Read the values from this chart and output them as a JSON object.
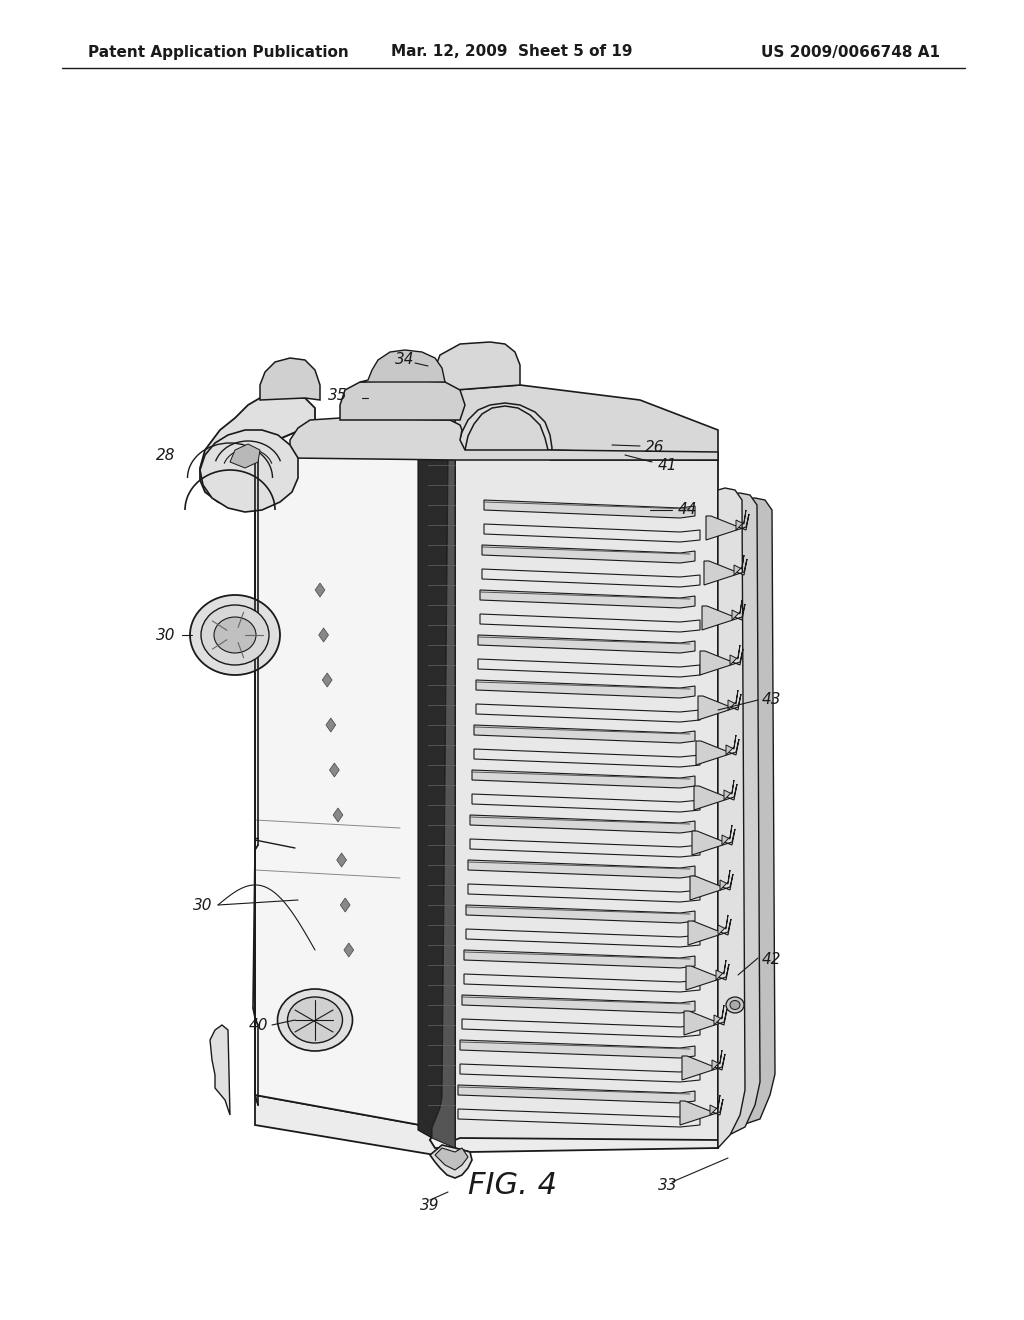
{
  "bg_color": "#ffffff",
  "header_left": "Patent Application Publication",
  "header_mid": "Mar. 12, 2009  Sheet 5 of 19",
  "header_right": "US 2009/0066748 A1",
  "figure_label": "FIG. 4",
  "line_color": "#1a1a1a",
  "text_color": "#1a1a1a",
  "header_fontsize": 11,
  "label_fontsize": 11,
  "fig_label_fontsize": 22,
  "lw_main": 1.5,
  "lw_detail": 0.9,
  "lw_thin": 0.6,
  "gray_light": "#f0f0f0",
  "gray_mid": "#d8d8d8",
  "gray_dark": "#b0b0b0",
  "gray_black": "#1a1a1a",
  "gray_shadow": "#888888"
}
